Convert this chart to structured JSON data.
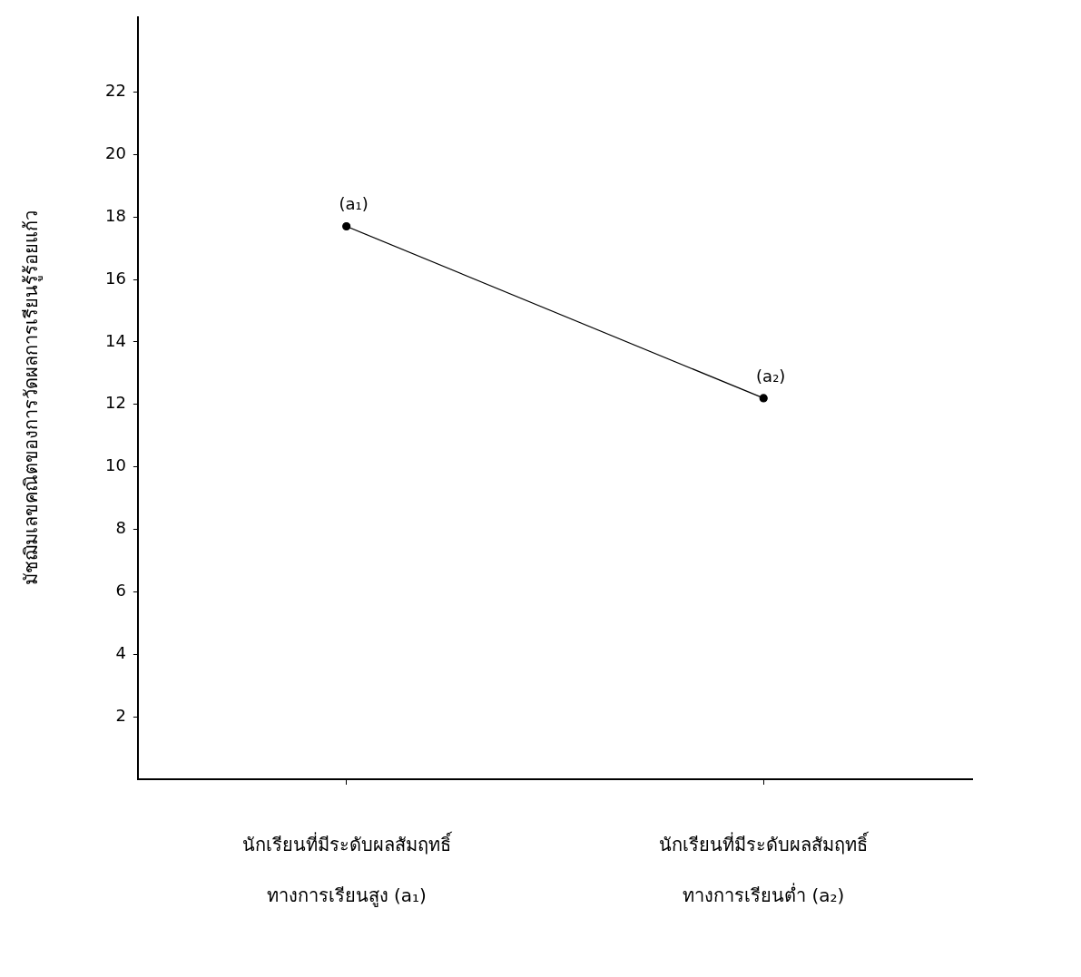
{
  "chart_data": {
    "type": "line",
    "ylabel": "มัชฌิมเลขคณิตของการวัดผลการเรียนรู้ร้อยแก้ว",
    "categories": [
      "นักเรียนที่มีระดับผลสัมฤทธิ์\nทางการเรียนสูง (a₁)",
      "นักเรียนที่มีระดับผลสัมฤทธิ์\nทางการเรียนต่ำ (a₂)"
    ],
    "values": [
      17.7,
      12.2
    ],
    "color": "#000000",
    "marker": "circle",
    "line_style": "solid",
    "ylim": [
      0,
      24.4
    ],
    "yticks": [
      2,
      4,
      6,
      8,
      10,
      12,
      14,
      16,
      18,
      20,
      22
    ],
    "grid": false,
    "legend": false,
    "annotations": [
      {
        "text": "(a₁)",
        "x": "นักเรียนที่มีระดับผลสัมฤทธิ์\nทางการเรียนสูง (a₁)",
        "y": 17.7
      },
      {
        "text": "(a₂)",
        "x": "นักเรียนที่มีระดับผลสัมฤทธิ์\nทางการเรียนต่ำ (a₂)",
        "y": 12.2
      }
    ]
  }
}
